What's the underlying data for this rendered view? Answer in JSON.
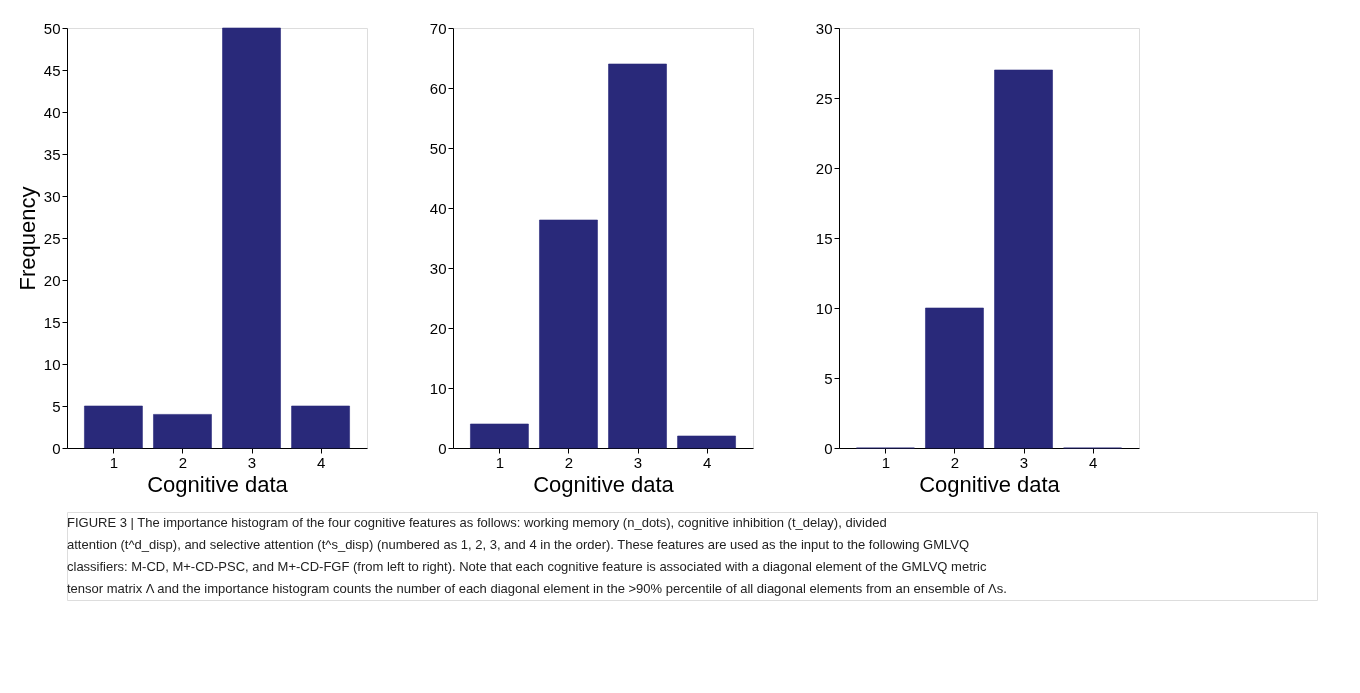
{
  "chart_data": [
    {
      "type": "bar",
      "categories": [
        "1",
        "2",
        "3",
        "4"
      ],
      "values": [
        5,
        4,
        50,
        5
      ],
      "color": "#29297a",
      "ylim": [
        0,
        50
      ],
      "yticks": [
        0,
        5,
        10,
        15,
        20,
        25,
        30,
        35,
        40,
        45,
        50
      ],
      "xlabel": "Cognitive data",
      "ylabel": "Frequency",
      "grid": false,
      "annotations": [
        "FIGURE 3 | The importance histogram of the four cognitive features as follows: working memory (n_dots), cognitive inhibition (t_delay), divided",
        "attention (t^d_disp), and selective attention (t^s_disp) (numbered as 1, 2, 3, and 4 in the order). These features are used as the input to the following GMLVQ",
        "classifiers: M-CD, M+-CD-PSC, and M+-CD-FGF (from left to right). Note that each cognitive feature is associated with a diagonal element of the GMLVQ metric",
        "tensor matrix Λ and the importance histogram counts the number of each diagonal element in the >90% percentile of all diagonal elements from an ensemble of Λs."
      ]
    },
    {
      "type": "bar",
      "categories": [
        "1",
        "2",
        "3",
        "4"
      ],
      "values": [
        4,
        38,
        64,
        2
      ],
      "color": "#29297a",
      "ylim": [
        0,
        70
      ],
      "yticks": [
        0,
        10,
        20,
        30,
        40,
        50,
        60,
        70
      ],
      "xlabel": "Cognitive data",
      "grid": false
    },
    {
      "type": "bar",
      "categories": [
        "1",
        "2",
        "3",
        "4"
      ],
      "values": [
        0,
        10,
        27,
        0
      ],
      "color": "#29297a",
      "ylim": [
        0,
        30
      ],
      "yticks": [
        0,
        5,
        10,
        15,
        20,
        25,
        30
      ],
      "xlabel": "Cognitive data",
      "grid": false
    }
  ]
}
